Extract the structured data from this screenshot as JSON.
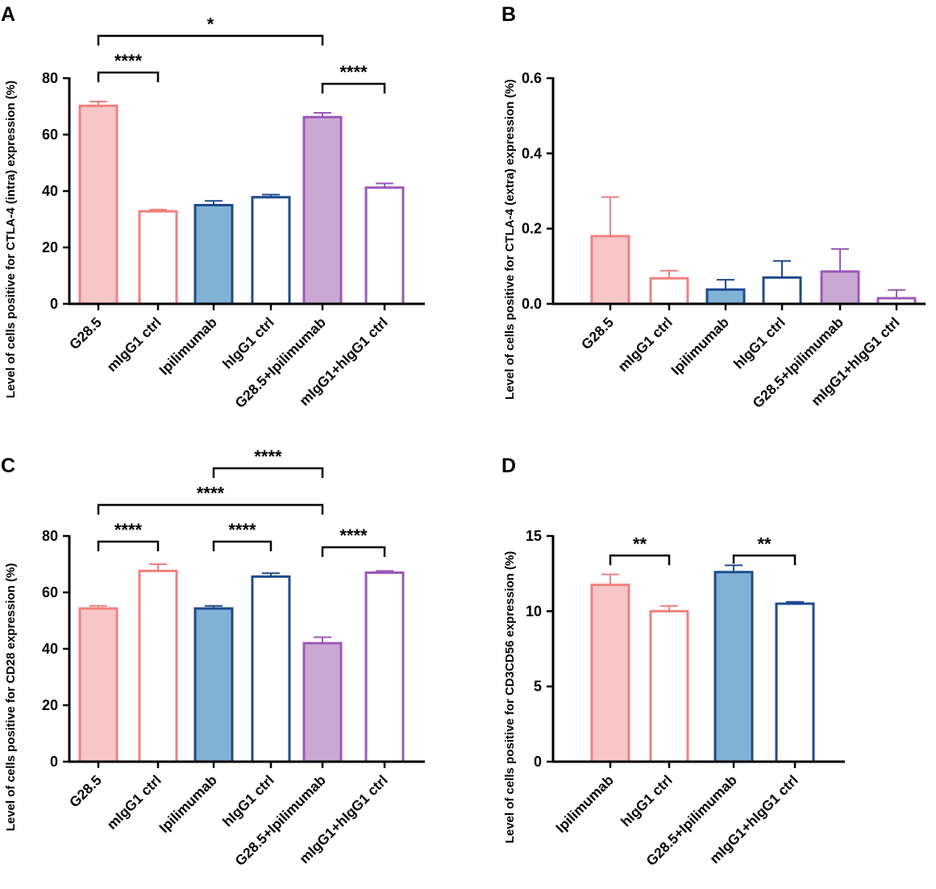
{
  "colors": {
    "pink": "#F08080",
    "pink_fill": "#F7C6C7",
    "blue": "#1E4B8C",
    "blue_fill": "#7FB2D5",
    "purple": "#9B59B6",
    "purple_fill": "#C9A9D1",
    "white": "#FFFFFF",
    "black": "#000000"
  },
  "chart_data": [
    {
      "panel": "A",
      "type": "bar",
      "ylabel": "Level of cells positive for CTLA-4 (intra) expression (%)",
      "ylim": [
        0,
        80
      ],
      "yticks": [
        0,
        20,
        40,
        60,
        80
      ],
      "categories": [
        "G28.5",
        "mIgG1 ctrl",
        "Ipilimumab",
        "hIgG1 ctrl",
        "G28.5+Ipilimumab",
        "mIgG1+hIgG1 ctrl"
      ],
      "values": [
        70.2,
        32.8,
        35.0,
        37.8,
        66.2,
        41.2
      ],
      "errors": [
        1.5,
        0.6,
        1.5,
        0.9,
        1.5,
        1.5
      ],
      "styles": [
        {
          "fill": "pink_fill",
          "stroke": "pink"
        },
        {
          "fill": "white",
          "stroke": "pink"
        },
        {
          "fill": "blue_fill",
          "stroke": "blue"
        },
        {
          "fill": "white",
          "stroke": "blue"
        },
        {
          "fill": "purple_fill",
          "stroke": "purple"
        },
        {
          "fill": "white",
          "stroke": "purple"
        }
      ],
      "significance": [
        {
          "from": 0,
          "to": 4,
          "label": "*",
          "level": 95
        },
        {
          "from": 0,
          "to": 1,
          "label": "****",
          "level": 82
        },
        {
          "from": 4,
          "to": 5,
          "label": "****",
          "level": 78
        }
      ]
    },
    {
      "panel": "B",
      "type": "bar",
      "ylabel": "Level of cells positive for CTLA-4 (extra) expression (%)",
      "ylim": [
        0,
        0.6
      ],
      "yticks": [
        0.0,
        0.2,
        0.4,
        0.6
      ],
      "ytick_labels": [
        "0.0",
        "0.2",
        "0.4",
        "0.6"
      ],
      "categories": [
        "G28.5",
        "mIgG1 ctrl",
        "Ipilimumab",
        "hIgG1 ctrl",
        "G28.5+Ipilimumab",
        "mIgG1+hIgG1 ctrl"
      ],
      "values": [
        0.18,
        0.068,
        0.038,
        0.07,
        0.086,
        0.015
      ],
      "errors": [
        0.104,
        0.02,
        0.026,
        0.044,
        0.06,
        0.022
      ],
      "styles": [
        {
          "fill": "pink_fill",
          "stroke": "pink"
        },
        {
          "fill": "white",
          "stroke": "pink"
        },
        {
          "fill": "blue_fill",
          "stroke": "blue"
        },
        {
          "fill": "white",
          "stroke": "blue"
        },
        {
          "fill": "purple_fill",
          "stroke": "purple"
        },
        {
          "fill": "white",
          "stroke": "purple"
        }
      ],
      "significance": []
    },
    {
      "panel": "C",
      "type": "bar",
      "ylabel": "Level of cells positive for CD28 expression (%)",
      "ylim": [
        0,
        80
      ],
      "yticks": [
        0,
        20,
        40,
        60,
        80
      ],
      "categories": [
        "G28.5",
        "mIgG1 ctrl",
        "Ipilimumab",
        "hIgG1 ctrl",
        "G28.5+Ipilimumab",
        "mIgG1+hIgG1 ctrl"
      ],
      "values": [
        54.3,
        67.6,
        54.3,
        65.6,
        42.0,
        67.0
      ],
      "errors": [
        0.9,
        2.4,
        0.9,
        1.2,
        2.1,
        0.6
      ],
      "styles": [
        {
          "fill": "pink_fill",
          "stroke": "pink"
        },
        {
          "fill": "white",
          "stroke": "pink"
        },
        {
          "fill": "blue_fill",
          "stroke": "blue"
        },
        {
          "fill": "white",
          "stroke": "blue"
        },
        {
          "fill": "purple_fill",
          "stroke": "purple"
        },
        {
          "fill": "white",
          "stroke": "purple"
        }
      ],
      "significance": [
        {
          "from": 2,
          "to": 4,
          "label": "****",
          "level": 104
        },
        {
          "from": 0,
          "to": 4,
          "label": "****",
          "level": 91
        },
        {
          "from": 0,
          "to": 1,
          "label": "****",
          "level": 78
        },
        {
          "from": 2,
          "to": 3,
          "label": "****",
          "level": 78
        },
        {
          "from": 4,
          "to": 5,
          "label": "****",
          "level": 76
        }
      ]
    },
    {
      "panel": "D",
      "type": "bar",
      "ylabel": "Level of cells positive for CD3CD56 expression (%)",
      "ylim": [
        0,
        15
      ],
      "yticks": [
        0,
        5,
        10,
        15
      ],
      "categories": [
        "Ipilimumab",
        "hIgG1 ctrl",
        "G28.5+Ipilimumab",
        "mIgG1+hIgG1 ctrl"
      ],
      "values": [
        11.75,
        10.0,
        12.6,
        10.5
      ],
      "errors": [
        0.7,
        0.35,
        0.45,
        0.12
      ],
      "styles": [
        {
          "fill": "pink_fill",
          "stroke": "pink"
        },
        {
          "fill": "white",
          "stroke": "pink"
        },
        {
          "fill": "blue_fill",
          "stroke": "blue"
        },
        {
          "fill": "white",
          "stroke": "blue"
        }
      ],
      "significance": [
        {
          "from": 0,
          "to": 1,
          "label": "**",
          "level": 13.7
        },
        {
          "from": 2,
          "to": 3,
          "label": "**",
          "level": 13.7
        }
      ]
    }
  ]
}
